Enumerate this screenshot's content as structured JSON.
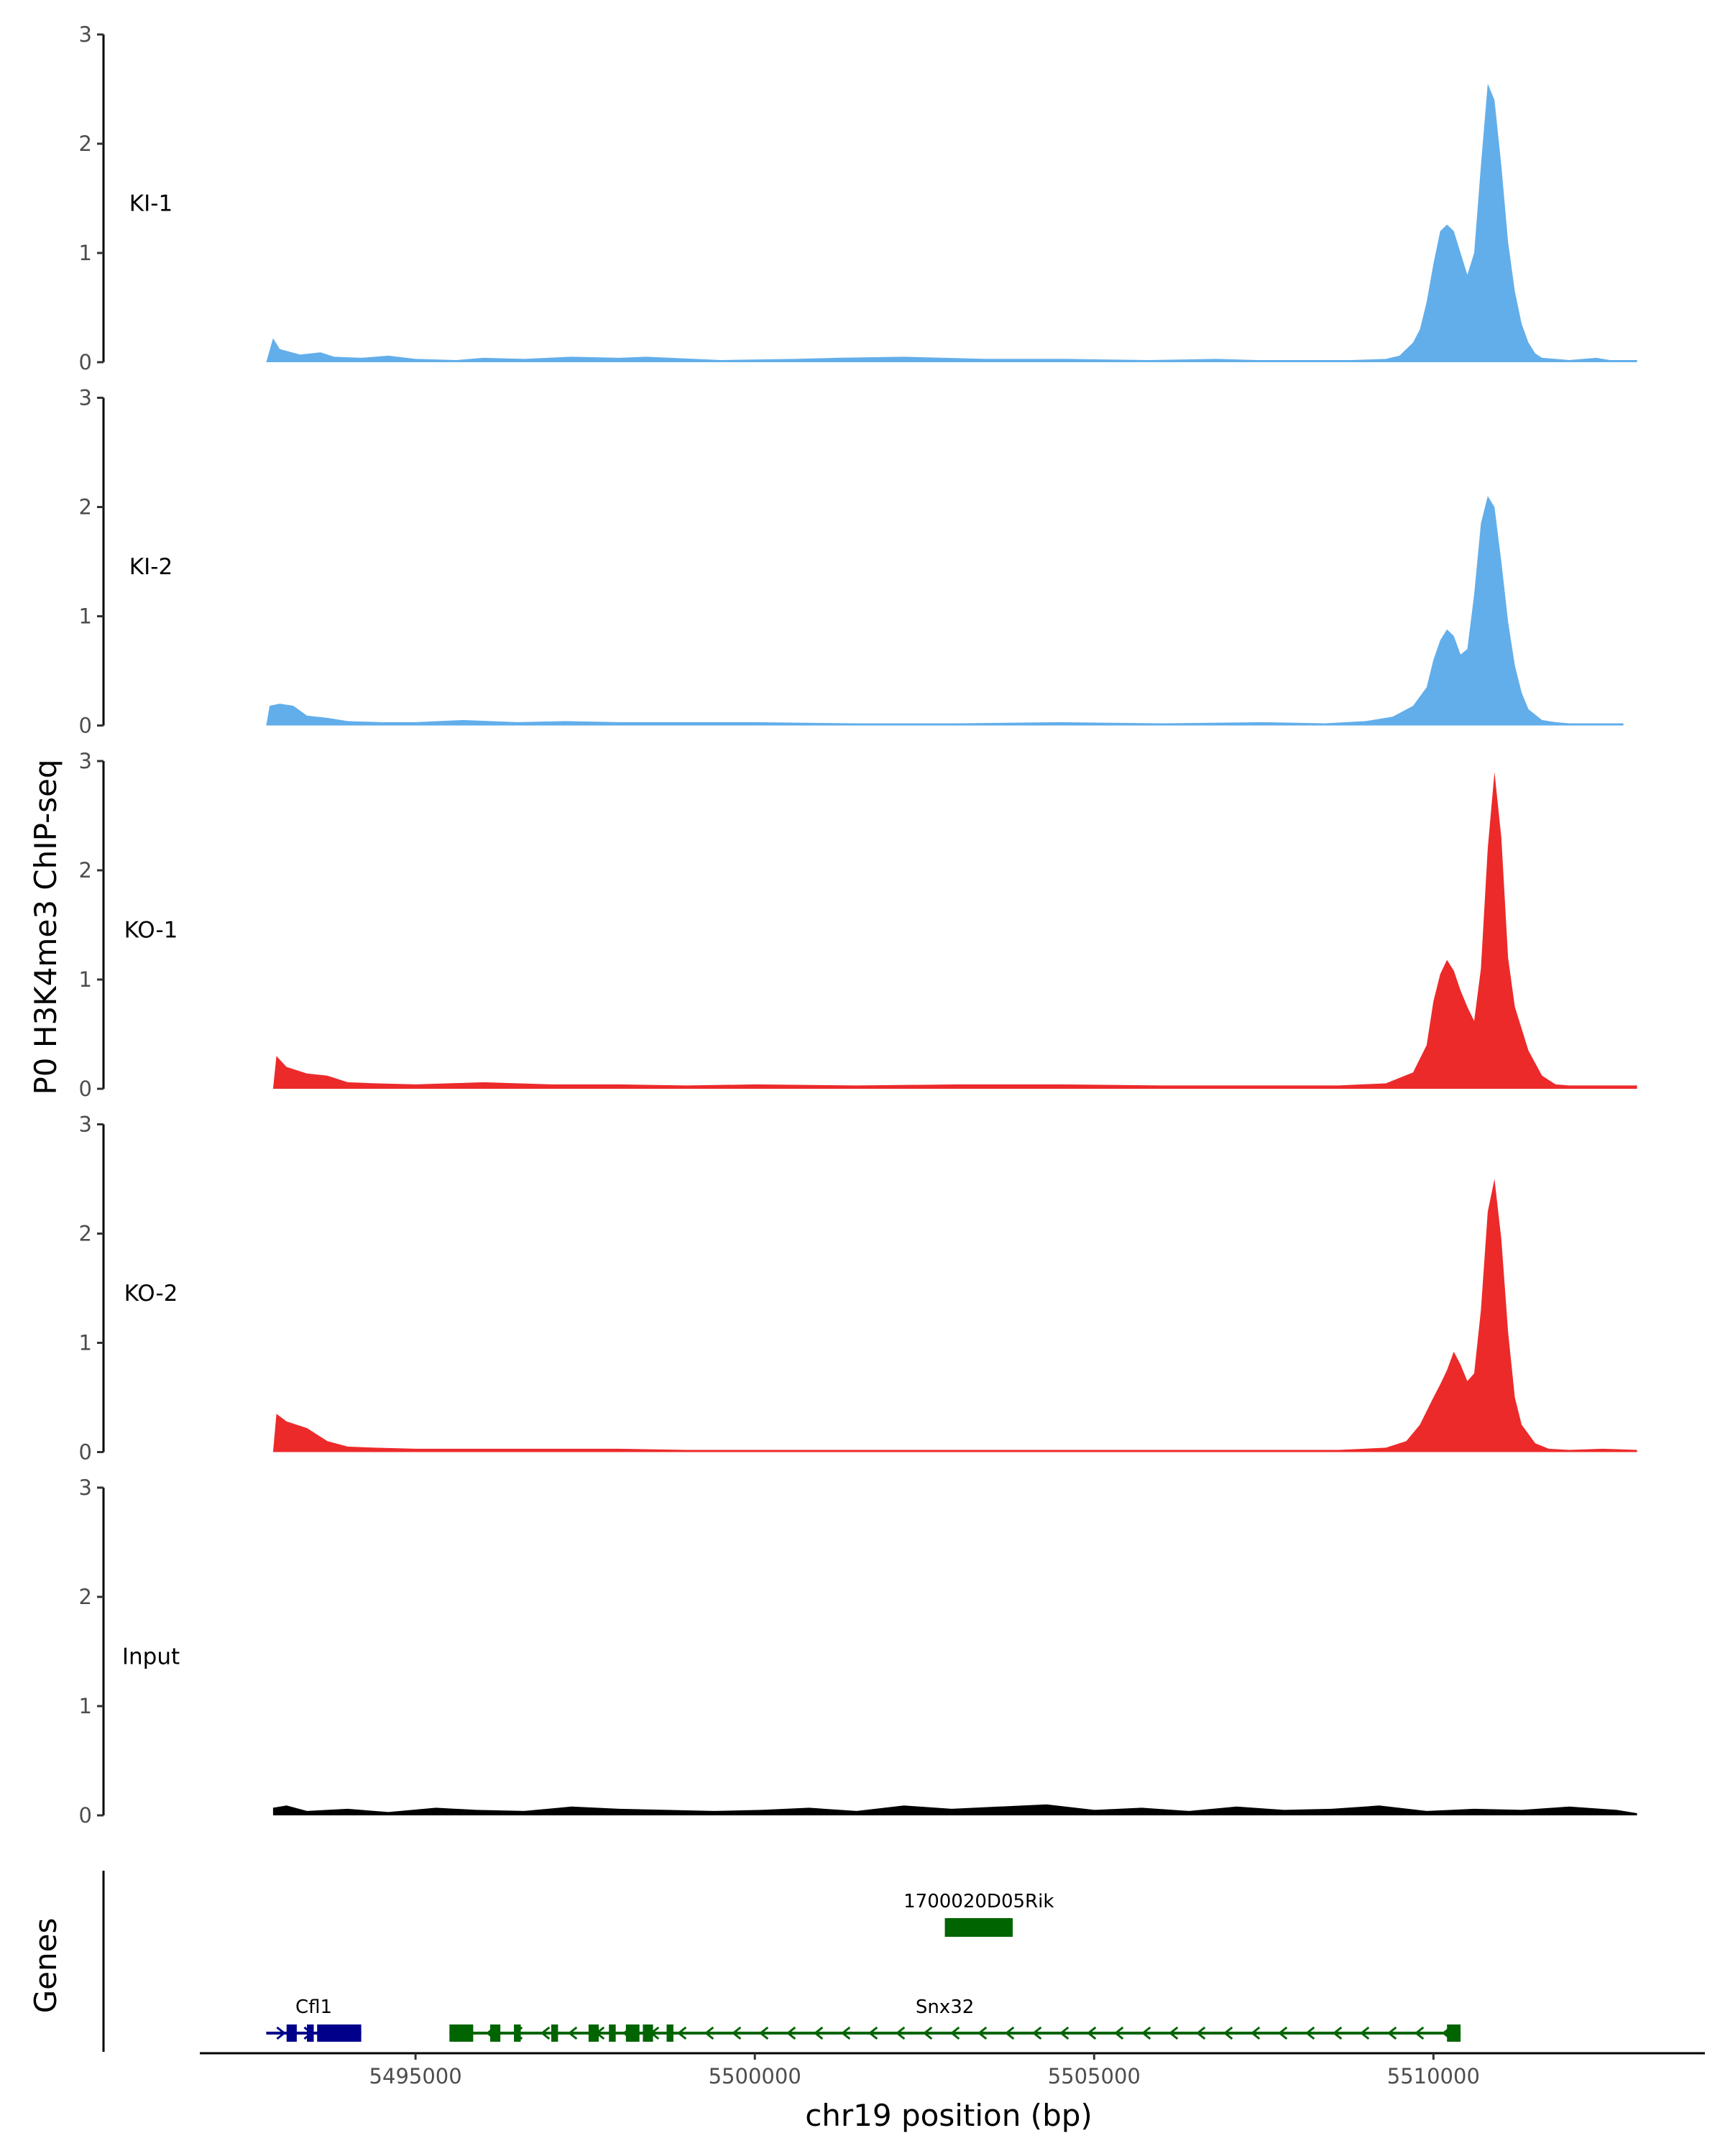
{
  "chart_data": {
    "type": "area",
    "ylabel": "P0 H3K4me3 ChIP-seq",
    "xlabel": "chr19 position (bp)",
    "ylim": [
      0,
      3
    ],
    "y_ticks": [
      0,
      1,
      2,
      3
    ],
    "xlim": [
      5491800,
      5514000
    ],
    "x_ticks": [
      5495000,
      5500000,
      5505000,
      5510000
    ],
    "x_tick_labels": [
      "5495000",
      "5500000",
      "5505000",
      "5510000"
    ],
    "colors": {
      "KI": "#62AEEA",
      "KO": "#EC2A2A",
      "Input": "#000000",
      "gene_cfl1": "#00008B",
      "gene_green": "#006400"
    },
    "series": [
      {
        "name": "KI-1",
        "color": "#62AEEA",
        "x": [
          5492800,
          5492900,
          5493000,
          5493300,
          5493600,
          5493800,
          5494200,
          5494600,
          5495000,
          5495600,
          5496000,
          5496600,
          5497300,
          5498000,
          5498400,
          5499500,
          5500600,
          5501200,
          5502200,
          5503400,
          5504600,
          5505800,
          5506800,
          5507400,
          5508800,
          5509300,
          5509500,
          5509700,
          5509800,
          5509900,
          5510000,
          5510100,
          5510200,
          5510300,
          5510400,
          5510500,
          5510600,
          5510700,
          5510800,
          5510900,
          5511000,
          5511100,
          5511200,
          5511300,
          5511400,
          5511500,
          5511600,
          5511800,
          5512000,
          5512400,
          5512600,
          5513000
        ],
        "y": [
          0.0,
          0.22,
          0.12,
          0.07,
          0.09,
          0.05,
          0.04,
          0.06,
          0.03,
          0.02,
          0.04,
          0.03,
          0.05,
          0.04,
          0.05,
          0.02,
          0.03,
          0.04,
          0.05,
          0.03,
          0.03,
          0.02,
          0.03,
          0.02,
          0.02,
          0.03,
          0.06,
          0.18,
          0.3,
          0.55,
          0.9,
          1.2,
          1.26,
          1.2,
          1.0,
          0.8,
          1.0,
          1.8,
          2.55,
          2.4,
          1.8,
          1.1,
          0.65,
          0.35,
          0.18,
          0.08,
          0.04,
          0.03,
          0.02,
          0.04,
          0.02,
          0.02
        ]
      },
      {
        "name": "KI-2",
        "color": "#62AEEA",
        "x": [
          5492800,
          5492850,
          5493000,
          5493200,
          5493400,
          5493700,
          5494000,
          5494500,
          5495000,
          5495700,
          5496500,
          5497200,
          5498000,
          5499000,
          5500000,
          5501500,
          5503000,
          5504500,
          5506000,
          5507500,
          5508400,
          5509000,
          5509400,
          5509700,
          5509900,
          5510000,
          5510100,
          5510200,
          5510300,
          5510400,
          5510500,
          5510600,
          5510700,
          5510800,
          5510900,
          5511000,
          5511100,
          5511200,
          5511300,
          5511400,
          5511600,
          5511800,
          5512000,
          5512400,
          5512800
        ],
        "y": [
          0.0,
          0.18,
          0.2,
          0.18,
          0.09,
          0.07,
          0.04,
          0.03,
          0.03,
          0.05,
          0.03,
          0.04,
          0.03,
          0.03,
          0.03,
          0.02,
          0.02,
          0.03,
          0.02,
          0.03,
          0.02,
          0.04,
          0.08,
          0.18,
          0.35,
          0.6,
          0.78,
          0.88,
          0.82,
          0.65,
          0.7,
          1.2,
          1.85,
          2.1,
          2.0,
          1.5,
          0.95,
          0.55,
          0.3,
          0.15,
          0.05,
          0.03,
          0.02,
          0.02,
          0.02
        ]
      },
      {
        "name": "KO-1",
        "color": "#EC2A2A",
        "x": [
          5492900,
          5492950,
          5493100,
          5493400,
          5493700,
          5494000,
          5494400,
          5495000,
          5495500,
          5496000,
          5497000,
          5498000,
          5499000,
          5500000,
          5501500,
          5503000,
          5504500,
          5506000,
          5507500,
          5508600,
          5509300,
          5509700,
          5509900,
          5510000,
          5510100,
          5510200,
          5510300,
          5510400,
          5510500,
          5510600,
          5510700,
          5510800,
          5510900,
          5511000,
          5511100,
          5511200,
          5511300,
          5511400,
          5511600,
          5511800,
          5512000,
          5512500,
          5513000
        ],
        "y": [
          0.0,
          0.3,
          0.2,
          0.14,
          0.12,
          0.06,
          0.05,
          0.04,
          0.05,
          0.06,
          0.04,
          0.04,
          0.03,
          0.04,
          0.03,
          0.04,
          0.04,
          0.03,
          0.03,
          0.03,
          0.05,
          0.15,
          0.4,
          0.8,
          1.05,
          1.18,
          1.08,
          0.9,
          0.75,
          0.62,
          1.1,
          2.2,
          2.9,
          2.3,
          1.2,
          0.75,
          0.55,
          0.35,
          0.12,
          0.04,
          0.03,
          0.03,
          0.03
        ]
      },
      {
        "name": "KO-2",
        "color": "#EC2A2A",
        "x": [
          5492900,
          5492950,
          5493100,
          5493400,
          5493700,
          5494000,
          5494400,
          5495000,
          5496000,
          5497000,
          5498000,
          5499000,
          5500000,
          5501500,
          5503000,
          5504500,
          5506000,
          5507500,
          5508600,
          5509300,
          5509600,
          5509800,
          5510000,
          5510100,
          5510200,
          5510300,
          5510400,
          5510500,
          5510600,
          5510700,
          5510800,
          5510900,
          5511000,
          5511100,
          5511200,
          5511300,
          5511500,
          5511700,
          5512000,
          5512500,
          5513000
        ],
        "y": [
          0.0,
          0.35,
          0.28,
          0.22,
          0.1,
          0.05,
          0.04,
          0.03,
          0.03,
          0.03,
          0.03,
          0.02,
          0.02,
          0.02,
          0.02,
          0.02,
          0.02,
          0.02,
          0.02,
          0.04,
          0.1,
          0.25,
          0.5,
          0.62,
          0.75,
          0.92,
          0.8,
          0.65,
          0.72,
          1.3,
          2.2,
          2.5,
          1.95,
          1.1,
          0.5,
          0.25,
          0.08,
          0.03,
          0.02,
          0.03,
          0.02
        ]
      },
      {
        "name": "Input",
        "color": "#000000",
        "x": [
          5492900,
          5493100,
          5493400,
          5494000,
          5494600,
          5495300,
          5495900,
          5496600,
          5497300,
          5498000,
          5498700,
          5499400,
          5500100,
          5500800,
          5501500,
          5502200,
          5502900,
          5503600,
          5504300,
          5505000,
          5505700,
          5506400,
          5507100,
          5507800,
          5508500,
          5509200,
          5509900,
          5510600,
          5511300,
          5512000,
          5512700,
          5513000
        ],
        "y": [
          0.07,
          0.09,
          0.04,
          0.06,
          0.03,
          0.07,
          0.05,
          0.04,
          0.08,
          0.06,
          0.05,
          0.04,
          0.05,
          0.07,
          0.04,
          0.09,
          0.06,
          0.08,
          0.1,
          0.05,
          0.07,
          0.04,
          0.08,
          0.05,
          0.06,
          0.09,
          0.04,
          0.06,
          0.05,
          0.08,
          0.05,
          0.02
        ]
      }
    ],
    "genes_track": {
      "label": "Genes",
      "genes": [
        {
          "name": "Cfl1",
          "color": "#00008B",
          "strand": "+",
          "row": 0,
          "start": 5492800,
          "end": 5494200,
          "exons": [
            [
              5493100,
              5493250
            ],
            [
              5493400,
              5493500
            ],
            [
              5493550,
              5494200
            ]
          ]
        },
        {
          "name": "Snx32",
          "color": "#006400",
          "strand": "-",
          "row": 0,
          "start": 5495500,
          "end": 5510400,
          "exons": [
            [
              5495500,
              5495850
            ],
            [
              5496100,
              5496250
            ],
            [
              5496450,
              5496550
            ],
            [
              5497000,
              5497100
            ],
            [
              5497550,
              5497700
            ],
            [
              5497850,
              5497950
            ],
            [
              5498100,
              5498300
            ],
            [
              5498350,
              5498500
            ],
            [
              5498700,
              5498800
            ],
            [
              5510200,
              5510400
            ]
          ]
        },
        {
          "name": "1700020D05Rik",
          "color": "#006400",
          "strand": "",
          "row": 1,
          "start": 5502800,
          "end": 5503800,
          "exons": [
            [
              5502800,
              5503800
            ]
          ]
        }
      ]
    }
  }
}
